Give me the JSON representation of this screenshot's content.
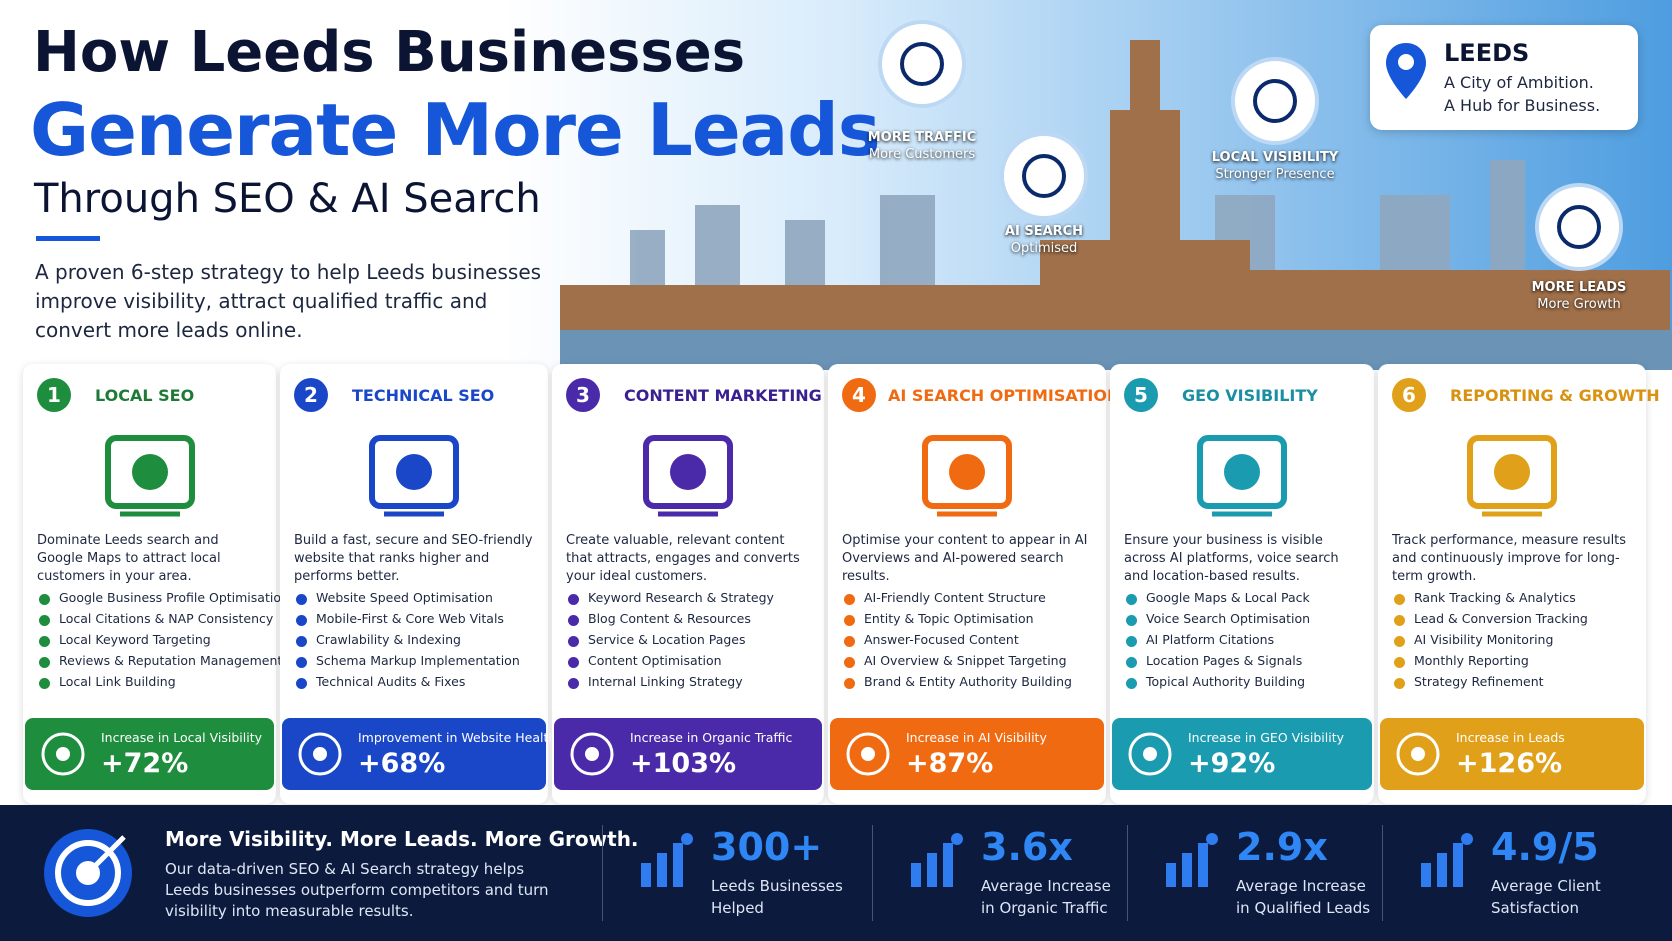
{
  "header": {
    "title_line1": "How Leeds Businesses",
    "title_line2": "Generate More Leads",
    "title_line3": "Through SEO & AI Search",
    "intro": "A proven 6-step strategy to help Leeds businesses improve visibility, attract qualified traffic and convert more leads online."
  },
  "badges": [
    {
      "title": "MORE TRAFFIC",
      "subtitle": "More Customers"
    },
    {
      "title": "AI SEARCH",
      "subtitle": "Optimised"
    },
    {
      "title": "LOCAL VISIBILITY",
      "subtitle": "Stronger Presence"
    },
    {
      "title": "MORE LEADS",
      "subtitle": "More Growth"
    }
  ],
  "location": {
    "name": "LEEDS",
    "line1": "A City of Ambition.",
    "line2": "A Hub for Business."
  },
  "steps": [
    {
      "number": "1",
      "title": "LOCAL SEO",
      "description": "Dominate Leeds search and Google Maps to attract local customers in your area.",
      "items": [
        "Google Business Profile Optimisation",
        "Local Citations & NAP Consistency",
        "Local Keyword Targeting",
        "Reviews & Reputation Management",
        "Local Link Building"
      ],
      "stat_label": "Increase in Local Visibility",
      "stat_value": "+72%"
    },
    {
      "number": "2",
      "title": "TECHNICAL SEO",
      "description": "Build a fast, secure and SEO-friendly website that ranks higher and performs better.",
      "items": [
        "Website Speed Optimisation",
        "Mobile-First & Core Web Vitals",
        "Crawlability & Indexing",
        "Schema Markup Implementation",
        "Technical Audits & Fixes"
      ],
      "stat_label": "Improvement in Website Health",
      "stat_value": "+68%"
    },
    {
      "number": "3",
      "title": "CONTENT MARKETING",
      "description": "Create valuable, relevant content that attracts, engages and converts your ideal customers.",
      "items": [
        "Keyword Research & Strategy",
        "Blog Content & Resources",
        "Service & Location Pages",
        "Content Optimisation",
        "Internal Linking Strategy"
      ],
      "stat_label": "Increase in Organic Traffic",
      "stat_value": "+103%"
    },
    {
      "number": "4",
      "title": "AI SEARCH OPTIMISATION",
      "description": "Optimise your content to appear in AI Overviews and AI-powered search results.",
      "items": [
        "AI-Friendly Content Structure",
        "Entity & Topic Optimisation",
        "Answer-Focused Content",
        "AI Overview & Snippet Targeting",
        "Brand & Entity Authority Building"
      ],
      "stat_label": "Increase in AI Visibility",
      "stat_value": "+87%"
    },
    {
      "number": "5",
      "title": "GEO VISIBILITY",
      "description": "Ensure your business is visible across AI platforms, voice search and location-based results.",
      "items": [
        "Google Maps & Local Pack",
        "Voice Search Optimisation",
        "AI Platform Citations",
        "Location Pages & Signals",
        "Topical Authority Building"
      ],
      "stat_label": "Increase in GEO Visibility",
      "stat_value": "+92%"
    },
    {
      "number": "6",
      "title": "REPORTING & GROWTH",
      "description": "Track performance, measure results and continuously improve for long-term growth.",
      "items": [
        "Rank Tracking & Analytics",
        "Lead & Conversion Tracking",
        "AI Visibility Monitoring",
        "Monthly Reporting",
        "Strategy Refinement"
      ],
      "stat_label": "Increase in Leads",
      "stat_value": "+126%"
    }
  ],
  "footer": {
    "headline": "More Visibility. More Leads. More Growth.",
    "text": "Our data-driven SEO & AI Search strategy helps Leeds businesses outperform competitors and turn visibility into measurable results.",
    "stats": [
      {
        "value": "300+",
        "label": "Leeds Businesses Helped"
      },
      {
        "value": "3.6x",
        "label": "Average Increase in Organic Traffic"
      },
      {
        "value": "2.9x",
        "label": "Average Increase in Qualified Leads"
      },
      {
        "value": "4.9/5",
        "label": "Average Client Satisfaction"
      }
    ]
  }
}
